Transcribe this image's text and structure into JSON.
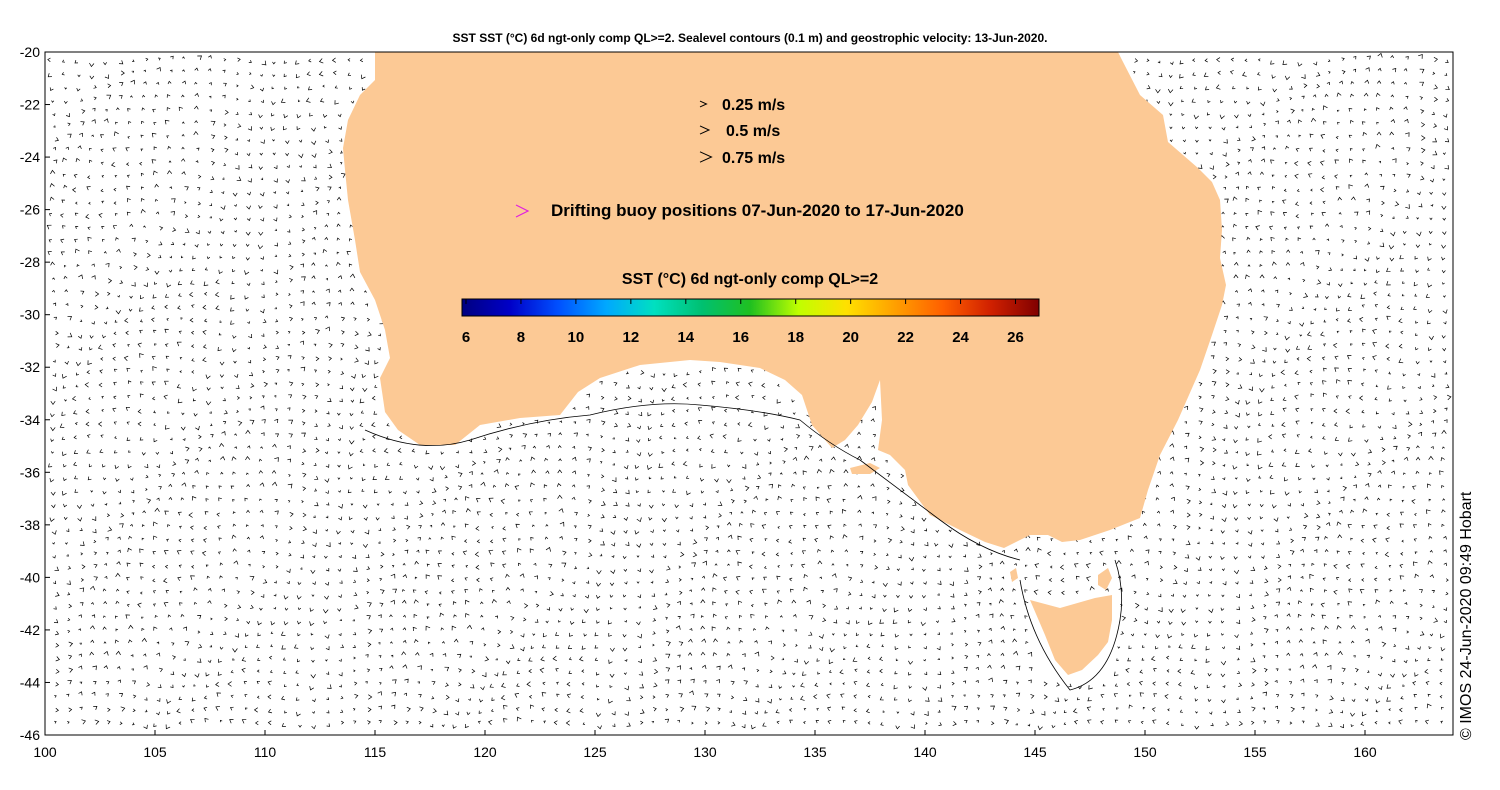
{
  "title": "SST SST (°C) 6d ngt-only comp QL>=2. Sealevel contours (0.1 m) and geostrophic velocity: 13-Jun-2020.",
  "credit": "© IMOS 24-Jun-2020 09:49 Hobart",
  "map": {
    "lon_range": [
      100,
      164
    ],
    "lat_range": [
      -46,
      -20
    ],
    "x_ticks": [
      "100",
      "105",
      "110",
      "115",
      "120",
      "125",
      "130",
      "135",
      "140",
      "145",
      "150",
      "155",
      "160"
    ],
    "y_ticks": [
      "-20",
      "-22",
      "-24",
      "-26",
      "-28",
      "-30",
      "-32",
      "-34",
      "-36",
      "-38",
      "-40",
      "-42",
      "-44",
      "-46"
    ],
    "land_color": "#FCC995"
  },
  "legend": {
    "velocity": [
      {
        "label": "0.25 m/s",
        "speed": 0.25
      },
      {
        "label": "0.5 m/s",
        "speed": 0.5
      },
      {
        "label": "0.75 m/s",
        "speed": 0.75
      }
    ],
    "buoy_label": "Drifting buoy positions 07-Jun-2020 to 17-Jun-2020",
    "buoy_color": "#E020E0"
  },
  "colorbar": {
    "title": "SST (°C) 6d ngt-only comp QL>=2",
    "min": 6,
    "max": 27,
    "ticks": [
      "6",
      "8",
      "10",
      "12",
      "14",
      "16",
      "18",
      "20",
      "22",
      "24",
      "26"
    ],
    "stops": [
      "#000080",
      "#0000c8",
      "#0050ff",
      "#00a8ff",
      "#00e0c0",
      "#00c070",
      "#20c020",
      "#c0ff00",
      "#ffe000",
      "#ffa000",
      "#ff6000",
      "#d02000",
      "#800000"
    ]
  }
}
